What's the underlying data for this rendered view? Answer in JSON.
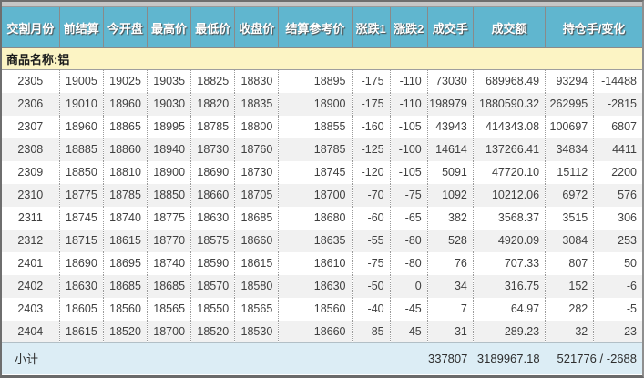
{
  "colors": {
    "header_bg": "#60B6CF",
    "header_text": "#FFFFFF",
    "group_bg": "#FCF4C4",
    "stripe_bg": "#F1F1F1",
    "subtotal_bg": "#DCEDF5",
    "body_text": "#3F3F3F"
  },
  "table": {
    "columns": [
      "交割月份",
      "前结算",
      "今开盘",
      "最高价",
      "最低价",
      "收盘价",
      "结算参考价",
      "涨跌1",
      "涨跌2",
      "成交手",
      "成交额",
      "持仓手/变化"
    ],
    "group_label": "商品名称:铝",
    "rows": [
      [
        "2305",
        "19005",
        "19025",
        "19035",
        "18825",
        "18830",
        "18895",
        "-175",
        "-110",
        "73030",
        "689968.49",
        "93294",
        "-14488"
      ],
      [
        "2306",
        "19010",
        "18960",
        "19030",
        "18820",
        "18835",
        "18900",
        "-175",
        "-110",
        "198979",
        "1880590.32",
        "262995",
        "-2815"
      ],
      [
        "2307",
        "18960",
        "18865",
        "18995",
        "18785",
        "18800",
        "18855",
        "-160",
        "-105",
        "43943",
        "414343.08",
        "100697",
        "6807"
      ],
      [
        "2308",
        "18885",
        "18860",
        "18940",
        "18730",
        "18760",
        "18785",
        "-125",
        "-100",
        "14614",
        "137266.41",
        "34834",
        "4411"
      ],
      [
        "2309",
        "18850",
        "18810",
        "18900",
        "18690",
        "18730",
        "18745",
        "-120",
        "-105",
        "5091",
        "47720.10",
        "15112",
        "2200"
      ],
      [
        "2310",
        "18775",
        "18785",
        "18850",
        "18660",
        "18705",
        "18700",
        "-70",
        "-75",
        "1092",
        "10212.06",
        "6972",
        "576"
      ],
      [
        "2311",
        "18745",
        "18740",
        "18775",
        "18630",
        "18685",
        "18680",
        "-60",
        "-65",
        "382",
        "3568.37",
        "3515",
        "306"
      ],
      [
        "2312",
        "18715",
        "18615",
        "18770",
        "18575",
        "18660",
        "18635",
        "-55",
        "-80",
        "528",
        "4920.09",
        "3084",
        "253"
      ],
      [
        "2401",
        "18690",
        "18695",
        "18740",
        "18590",
        "18615",
        "18610",
        "-75",
        "-80",
        "76",
        "707.33",
        "807",
        "50"
      ],
      [
        "2402",
        "18630",
        "18685",
        "18685",
        "18570",
        "18580",
        "18630",
        "-50",
        "0",
        "34",
        "316.75",
        "152",
        "-6"
      ],
      [
        "2403",
        "18605",
        "18560",
        "18565",
        "18550",
        "18565",
        "18560",
        "-40",
        "-45",
        "7",
        "64.97",
        "282",
        "-5"
      ],
      [
        "2404",
        "18615",
        "18520",
        "18700",
        "18520",
        "18530",
        "18660",
        "-85",
        "45",
        "31",
        "289.23",
        "32",
        "23"
      ]
    ],
    "subtotal": {
      "label": "小计",
      "volume_total": "337807",
      "turnover_total": "3189967.18",
      "open_interest_change_total": "521776 / -2688"
    }
  }
}
